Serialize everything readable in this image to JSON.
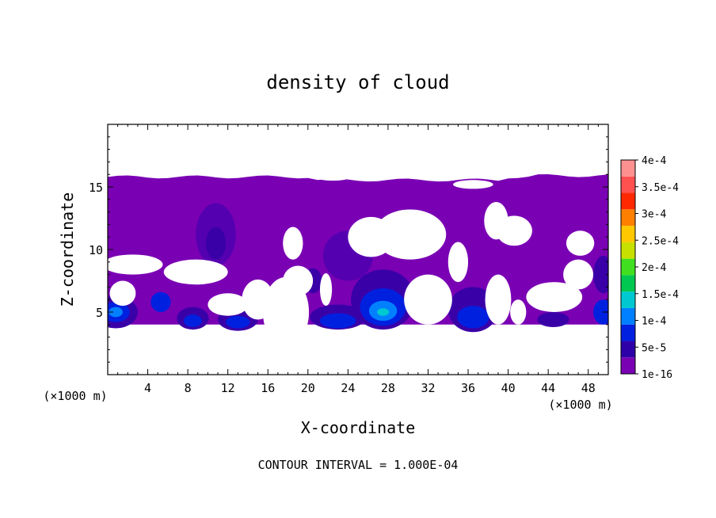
{
  "chart_data": {
    "type": "heatmap",
    "title": "density of cloud",
    "xlabel": "X-coordinate",
    "ylabel": "Z-coordinate",
    "x_unit_left": "(×1000 m)",
    "x_unit_right": "(×1000 m)",
    "footer": "CONTOUR INTERVAL = 1.000E-04",
    "xlim": [
      0,
      50
    ],
    "ylim": [
      0,
      20
    ],
    "x_ticks": [
      4,
      8,
      12,
      16,
      20,
      24,
      28,
      32,
      36,
      40,
      44,
      48
    ],
    "x_tick_labels": [
      "4",
      "8",
      "12",
      "16",
      "20",
      "24",
      "28",
      "32",
      "36",
      "40",
      "44",
      "48"
    ],
    "y_ticks": [
      5,
      10,
      15
    ],
    "y_tick_labels": [
      "5",
      "10",
      "15"
    ],
    "colorbar": {
      "labels": [
        "1e-16",
        "5e-5",
        "1e-4",
        "1.5e-4",
        "2e-4",
        "2.5e-4",
        "3e-4",
        "3.5e-4",
        "4e-4"
      ],
      "values": [
        1e-16,
        5e-05,
        0.0001,
        0.00015,
        0.0002,
        0.00025,
        0.0003,
        0.00035,
        0.0004
      ],
      "colors": [
        "#7a00b4",
        "#2e00a8",
        "#0020e0",
        "#0080ff",
        "#00c8d0",
        "#00c850",
        "#40e020",
        "#c8e000",
        "#ffc800",
        "#ff8000",
        "#ff2800",
        "#ff5050",
        "#ff9090"
      ]
    },
    "cloud_region": {
      "z_base": 4,
      "z_top": 15.8,
      "base_color": "#7a00b4"
    },
    "features": [
      {
        "x": 10.8,
        "z": 11.2,
        "rx": 2.0,
        "rz": 2.5,
        "color": "#5500b0"
      },
      {
        "x": 10.8,
        "z": 10.5,
        "rx": 1.0,
        "rz": 1.3,
        "color": "#3a00a8"
      },
      {
        "x": 24,
        "z": 9.5,
        "rx": 2.5,
        "rz": 2.0,
        "color": "#5500b0"
      },
      {
        "x": 0.8,
        "z": 5.0,
        "rx": 2.2,
        "rz": 1.3,
        "color": "#3a00a8"
      },
      {
        "x": 0.8,
        "z": 5.0,
        "rx": 1.4,
        "rz": 0.8,
        "color": "#0020e0"
      },
      {
        "x": 0.8,
        "z": 5.0,
        "rx": 0.7,
        "rz": 0.4,
        "color": "#0080ff"
      },
      {
        "x": 5.3,
        "z": 5.8,
        "rx": 1.0,
        "rz": 0.8,
        "color": "#0020e0"
      },
      {
        "x": 8.5,
        "z": 4.5,
        "rx": 1.6,
        "rz": 0.9,
        "color": "#3a00a8"
      },
      {
        "x": 8.5,
        "z": 4.3,
        "rx": 0.9,
        "rz": 0.5,
        "color": "#0020e0"
      },
      {
        "x": 13,
        "z": 4.4,
        "rx": 2.0,
        "rz": 0.9,
        "color": "#3a00a8"
      },
      {
        "x": 13,
        "z": 4.2,
        "rx": 1.2,
        "rz": 0.5,
        "color": "#0020e0"
      },
      {
        "x": 23,
        "z": 4.6,
        "rx": 2.8,
        "rz": 1.0,
        "color": "#3a00a8"
      },
      {
        "x": 23,
        "z": 4.3,
        "rx": 1.8,
        "rz": 0.6,
        "color": "#0020e0"
      },
      {
        "x": 27.5,
        "z": 6.0,
        "rx": 3.2,
        "rz": 2.4,
        "color": "#3a00a8"
      },
      {
        "x": 27.5,
        "z": 5.4,
        "rx": 2.3,
        "rz": 1.5,
        "color": "#0020e0"
      },
      {
        "x": 27.5,
        "z": 5.1,
        "rx": 1.4,
        "rz": 0.8,
        "color": "#0080ff"
      },
      {
        "x": 27.5,
        "z": 5.0,
        "rx": 0.6,
        "rz": 0.3,
        "color": "#00c8d0"
      },
      {
        "x": 36.5,
        "z": 5.2,
        "rx": 2.5,
        "rz": 1.8,
        "color": "#3a00a8"
      },
      {
        "x": 36.5,
        "z": 4.6,
        "rx": 1.6,
        "rz": 0.9,
        "color": "#0020e0"
      },
      {
        "x": 44.5,
        "z": 4.4,
        "rx": 1.6,
        "rz": 0.6,
        "color": "#3a00a8"
      },
      {
        "x": 49.5,
        "z": 5.0,
        "rx": 1.0,
        "rz": 1.0,
        "color": "#0020e0"
      },
      {
        "x": 49.5,
        "z": 8.0,
        "rx": 1.0,
        "rz": 1.5,
        "color": "#3a00a8"
      },
      {
        "x": 20.5,
        "z": 7.5,
        "rx": 0.9,
        "rz": 1.0,
        "color": "#3a00a8"
      }
    ],
    "clear_gaps": [
      {
        "x": 8.8,
        "z": 8.2,
        "rx": 3.2,
        "rz": 1.0
      },
      {
        "x": 2.5,
        "z": 8.8,
        "rx": 3.0,
        "rz": 0.8
      },
      {
        "x": 1.5,
        "z": 6.5,
        "rx": 1.3,
        "rz": 1.0
      },
      {
        "x": 12.0,
        "z": 5.6,
        "rx": 2.0,
        "rz": 0.9
      },
      {
        "x": 15.0,
        "z": 6.0,
        "rx": 1.6,
        "rz": 1.6
      },
      {
        "x": 17.8,
        "z": 5.0,
        "rx": 2.3,
        "rz": 2.8
      },
      {
        "x": 19.0,
        "z": 7.5,
        "rx": 1.5,
        "rz": 1.2
      },
      {
        "x": 18.5,
        "z": 10.5,
        "rx": 1.0,
        "rz": 1.3
      },
      {
        "x": 21.8,
        "z": 6.8,
        "rx": 0.6,
        "rz": 1.3
      },
      {
        "x": 26.3,
        "z": 11.0,
        "rx": 2.3,
        "rz": 1.6
      },
      {
        "x": 30.2,
        "z": 11.2,
        "rx": 3.6,
        "rz": 2.0
      },
      {
        "x": 32.0,
        "z": 6.0,
        "rx": 2.4,
        "rz": 2.0
      },
      {
        "x": 35.0,
        "z": 9.0,
        "rx": 1.0,
        "rz": 1.6
      },
      {
        "x": 39.0,
        "z": 6.0,
        "rx": 1.3,
        "rz": 2.0
      },
      {
        "x": 38.8,
        "z": 12.3,
        "rx": 1.2,
        "rz": 1.5
      },
      {
        "x": 40.6,
        "z": 11.5,
        "rx": 1.8,
        "rz": 1.2
      },
      {
        "x": 41.0,
        "z": 5.0,
        "rx": 0.8,
        "rz": 1.0
      },
      {
        "x": 44.6,
        "z": 6.2,
        "rx": 2.8,
        "rz": 1.2
      },
      {
        "x": 47.2,
        "z": 10.5,
        "rx": 1.4,
        "rz": 1.0
      },
      {
        "x": 47.0,
        "z": 8.0,
        "rx": 1.5,
        "rz": 1.2
      },
      {
        "x": 22.5,
        "z": 15.7,
        "rx": 1.5,
        "rz": 0.2
      },
      {
        "x": 36.5,
        "z": 15.2,
        "rx": 2.0,
        "rz": 0.35
      }
    ],
    "grid": false,
    "legend": "colorbar-right"
  }
}
